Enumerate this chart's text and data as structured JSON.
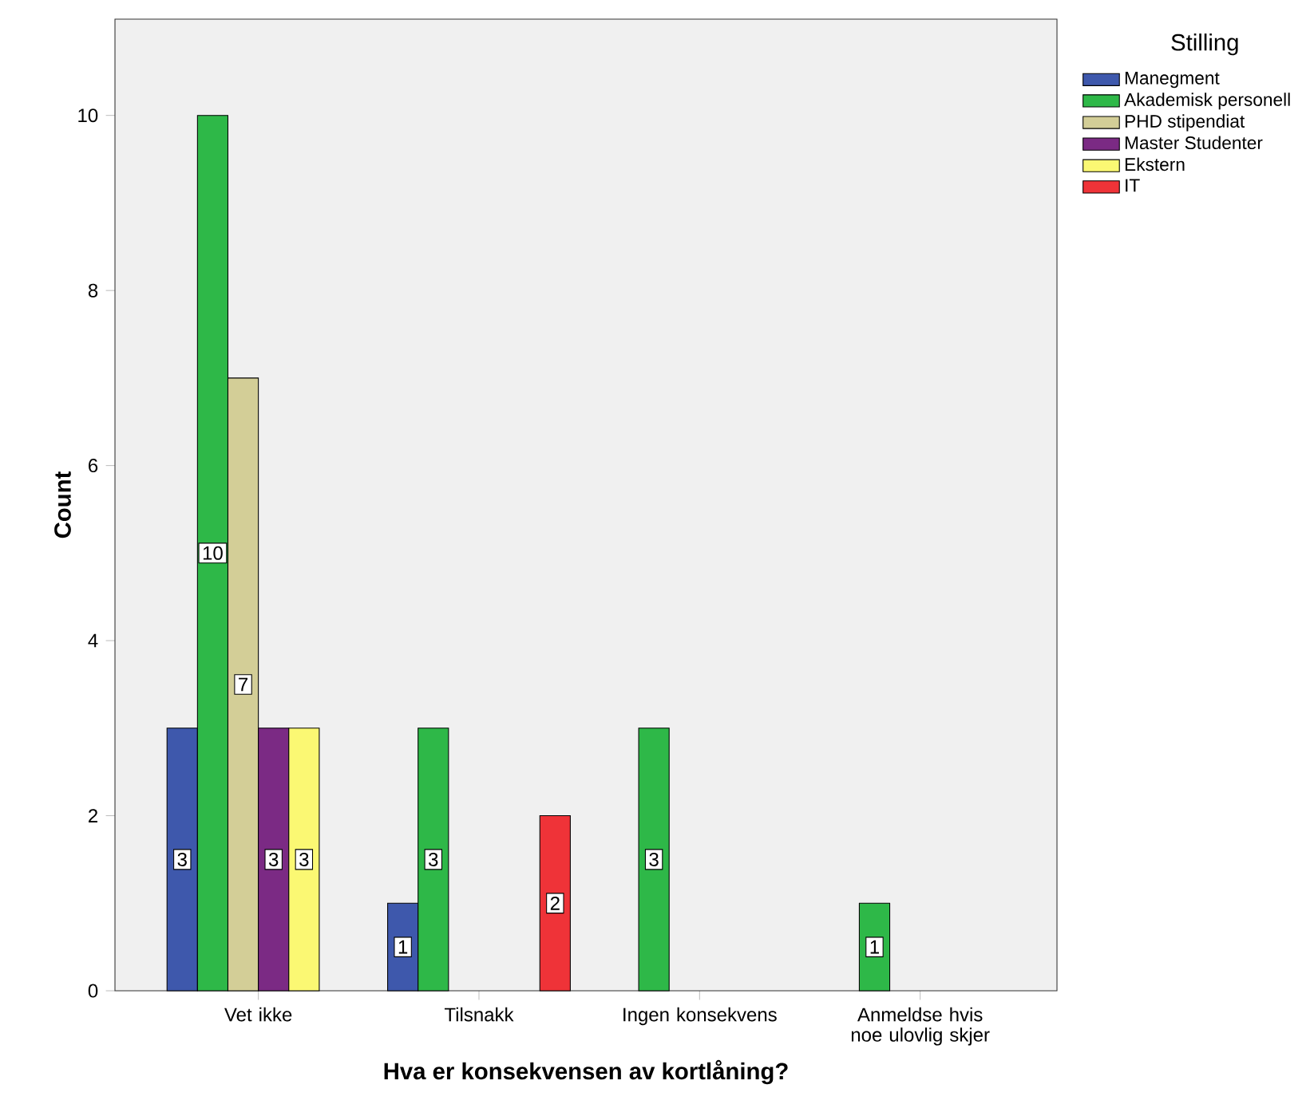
{
  "chart_data": {
    "type": "bar",
    "xlabel": "Hva er konsekvensen av kortlåning?",
    "ylabel": "Count",
    "legend_title": "Stilling",
    "legend": "right",
    "categories": [
      "Vet ikke",
      "Tilsnakk",
      "Ingen konsekvens",
      "Anmeldse hvis noe ulovlig skjer"
    ],
    "series": [
      {
        "name": "Manegment",
        "color": "#3e58ac",
        "values": [
          3,
          1,
          null,
          null
        ]
      },
      {
        "name": "Akademisk personell",
        "color": "#2eb848",
        "values": [
          10,
          3,
          3,
          1
        ]
      },
      {
        "name": "PHD stipendiat",
        "color": "#d3ce97",
        "values": [
          7,
          null,
          null,
          null
        ]
      },
      {
        "name": "Master Studenter",
        "color": "#7b2a84",
        "values": [
          3,
          null,
          null,
          null
        ]
      },
      {
        "name": "Ekstern",
        "color": "#fbf873",
        "values": [
          3,
          null,
          null,
          null
        ]
      },
      {
        "name": "IT",
        "color": "#ef3338",
        "values": [
          null,
          2,
          null,
          null
        ]
      }
    ],
    "ylim": [
      0,
      11.1
    ],
    "yticks": [
      0,
      2,
      4,
      6,
      8,
      10
    ],
    "grid": false,
    "data_labels": true
  }
}
